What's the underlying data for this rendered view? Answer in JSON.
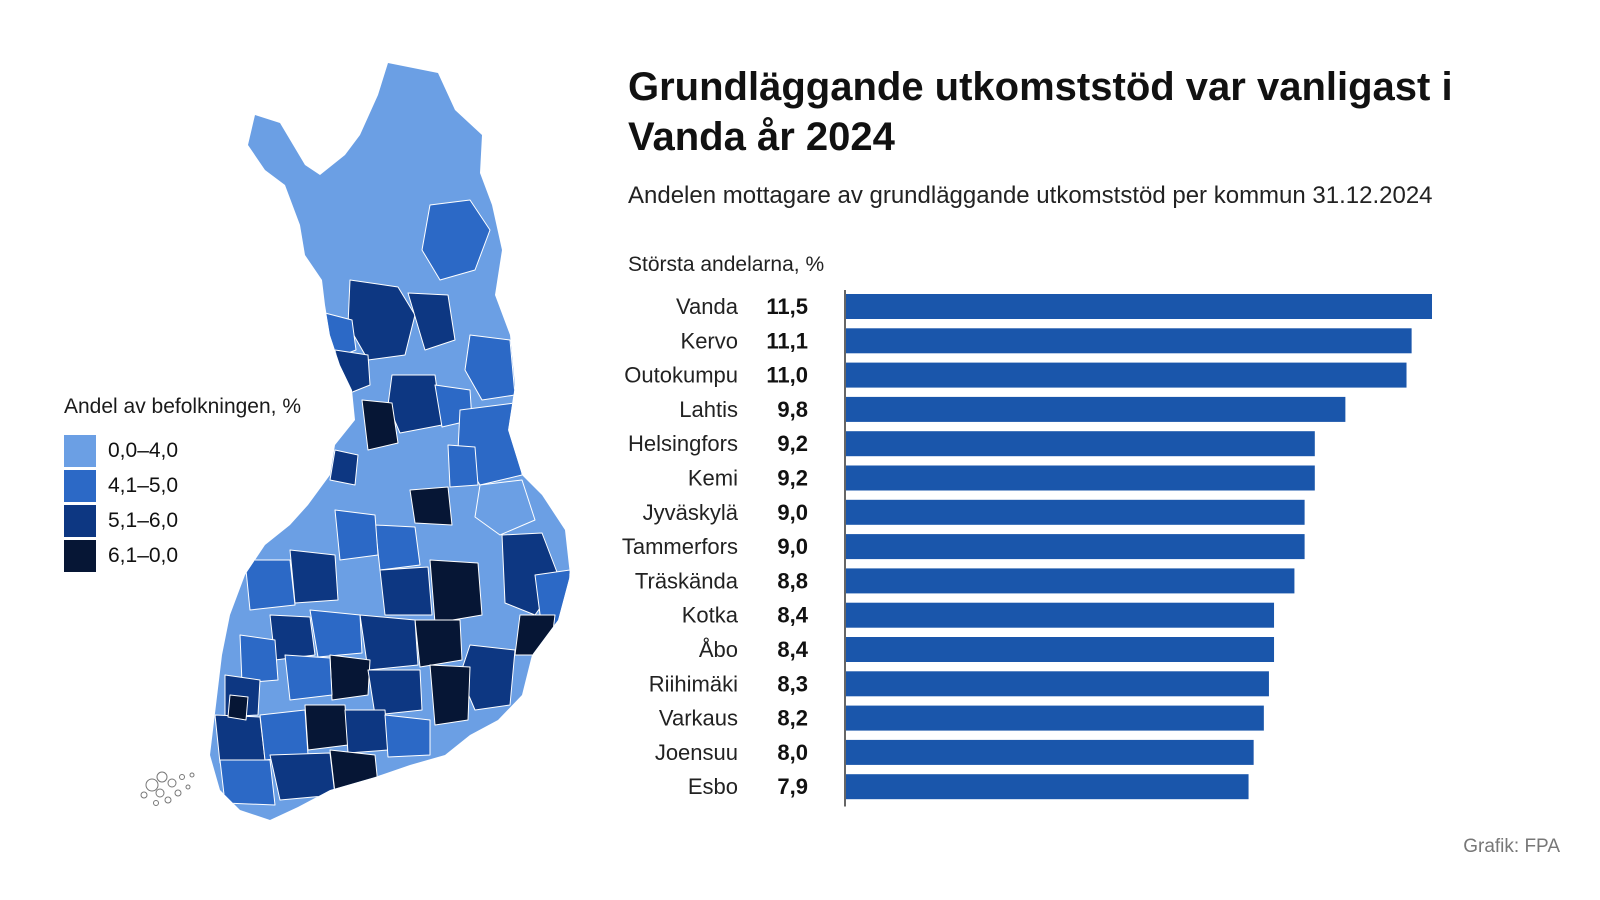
{
  "title": "Grundläggande utkomststöd var vanligast i Vanda år 2024",
  "subtitle": "Andelen mottagare av grundläggande utkomststöd per kommun 31.12.2024",
  "source": "Grafik: FPA",
  "legend": {
    "title": "Andel av befolkningen, %",
    "items": [
      {
        "label": "0,0–4,0",
        "color": "#6b9fe4"
      },
      {
        "label": "4,1–5,0",
        "color": "#2c69c6"
      },
      {
        "label": "5,1–6,0",
        "color": "#0d3782"
      },
      {
        "label": "6,1–0,0",
        "color": "#061635"
      }
    ]
  },
  "chart_data": {
    "type": "bar",
    "orientation": "horizontal",
    "title": "Grundläggande utkomststöd var vanligast i Vanda år 2024",
    "subtitle": "Andelen mottagare av grundläggande utkomststöd per kommun 31.12.2024",
    "xlabel": "Största andelarna, %",
    "categories": [
      "Vanda",
      "Kervo",
      "Outokumpu",
      "Lahtis",
      "Helsingfors",
      "Kemi",
      "Jyväskylä",
      "Tammerfors",
      "Träskända",
      "Kotka",
      "Åbo",
      "Riihimäki",
      "Varkaus",
      "Joensuu",
      "Esbo"
    ],
    "values": [
      11.5,
      11.1,
      11.0,
      9.8,
      9.2,
      9.2,
      9.0,
      9.0,
      8.8,
      8.4,
      8.4,
      8.3,
      8.2,
      8.0,
      7.9
    ],
    "value_labels": [
      "11,5",
      "11,1",
      "11,0",
      "9,8",
      "9,2",
      "9,2",
      "9,0",
      "9,0",
      "8,8",
      "8,4",
      "8,4",
      "8,3",
      "8,2",
      "8,0",
      "7,9"
    ],
    "xlim": [
      0,
      11.5
    ],
    "bar_color": "#1a56ab",
    "grid": false,
    "legend": "left"
  }
}
